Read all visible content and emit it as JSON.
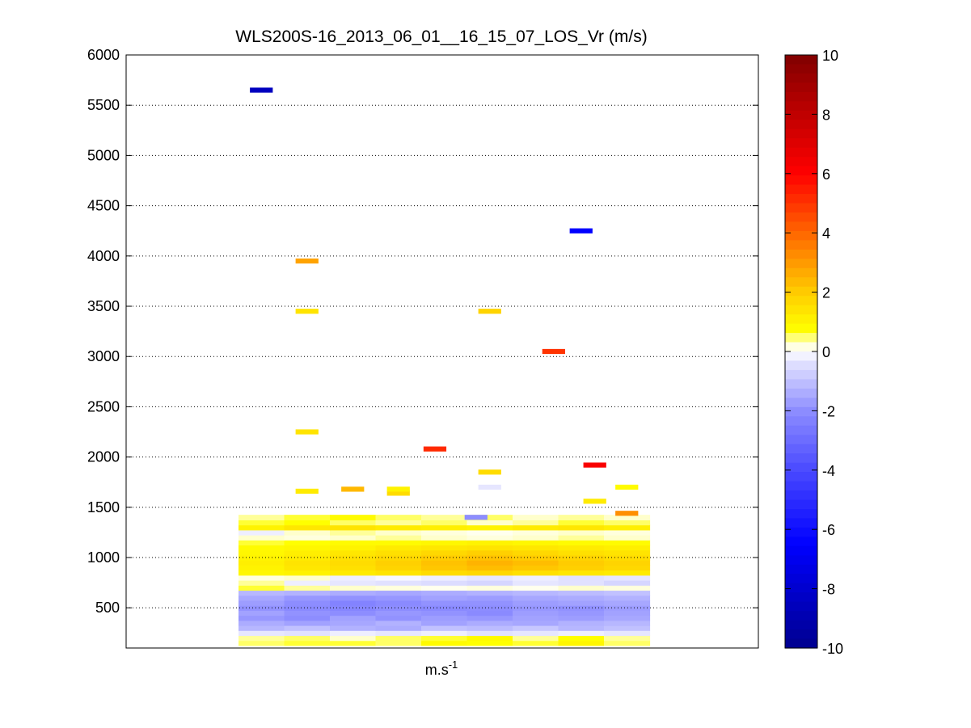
{
  "chart_data": {
    "type": "heatmap",
    "title": "WLS200S-16_2013_06_01__16_15_07_LOS_Vr (m/s)",
    "xlabel": {
      "base": "m.s",
      "superscript": "-1"
    },
    "ylabel": "",
    "ylim": [
      100,
      6000
    ],
    "yticks": [
      "500",
      "1000",
      "1500",
      "2000",
      "2500",
      "3000",
      "3500",
      "4000",
      "4500",
      "5000",
      "5500",
      "6000"
    ],
    "grid": "horizontal dotted",
    "colorbar": {
      "range": [
        -10,
        10
      ],
      "ticks": [
        "-10",
        "-8",
        "-6",
        "-4",
        "-2",
        "0",
        "2",
        "4",
        "6",
        "8",
        "10"
      ],
      "placement": "right",
      "stops": [
        {
          "v": -10,
          "color": "#00008f"
        },
        {
          "v": -6.5,
          "color": "#0000ff"
        },
        {
          "v": -4,
          "color": "#4a4aff"
        },
        {
          "v": -2,
          "color": "#8d8dff"
        },
        {
          "v": -0.3,
          "color": "#e6e6ff"
        },
        {
          "v": 0,
          "color": "#ffffff"
        },
        {
          "v": 0.3,
          "color": "#ffffcc"
        },
        {
          "v": 0.7,
          "color": "#ffff00"
        },
        {
          "v": 2,
          "color": "#ffcc00"
        },
        {
          "v": 4,
          "color": "#ff6600"
        },
        {
          "v": 6,
          "color": "#ff0000"
        },
        {
          "v": 10,
          "color": "#800000"
        }
      ]
    },
    "x_columns": 9,
    "cells": [
      {
        "c": 0.5,
        "h": 5650,
        "v": -8.5
      },
      {
        "c": 1.5,
        "h": 3950,
        "v": 2.8
      },
      {
        "c": 1.5,
        "h": 3450,
        "v": 1.4
      },
      {
        "c": 1.5,
        "h": 2250,
        "v": 1.4
      },
      {
        "c": 5.5,
        "h": 3450,
        "v": 1.8
      },
      {
        "c": 6.9,
        "h": 3050,
        "v": 5.0
      },
      {
        "c": 7.5,
        "h": 4250,
        "v": -6.5
      },
      {
        "c": 4.3,
        "h": 2080,
        "v": 5.2
      },
      {
        "c": 5.5,
        "h": 1850,
        "v": 1.6
      },
      {
        "c": 5.5,
        "h": 1700,
        "v": -0.3
      },
      {
        "c": 7.8,
        "h": 1920,
        "v": 6.2
      },
      {
        "c": 1.5,
        "h": 1660,
        "v": 1.2
      },
      {
        "c": 2.5,
        "h": 1680,
        "v": 2.4
      },
      {
        "c": 3.5,
        "h": 1640,
        "v": 1.6
      },
      {
        "c": 3.5,
        "h": 1680,
        "v": 1.0
      },
      {
        "c": 8.5,
        "h": 1700,
        "v": 0.8
      },
      {
        "c": 7.8,
        "h": 1560,
        "v": 1.2
      },
      {
        "c": 8.5,
        "h": 1440,
        "v": 3.2
      },
      {
        "c": 5.2,
        "h": 1400,
        "v": -2.0
      }
    ],
    "profiles": [
      {
        "h": 150,
        "v": [
          0.5,
          0.6,
          0.6,
          0.5,
          0.8,
          0.7,
          0.6,
          0.9,
          0.5
        ]
      },
      {
        "h": 200,
        "v": [
          0.4,
          0.5,
          0.3,
          0.5,
          0.6,
          0.8,
          0.4,
          0.7,
          0.4
        ]
      },
      {
        "h": 250,
        "v": [
          -0.3,
          -0.4,
          -0.2,
          -0.3,
          -0.2,
          -0.4,
          -0.3,
          -0.2,
          -0.3
        ]
      },
      {
        "h": 300,
        "v": [
          -1.2,
          -1.0,
          -1.3,
          -1.4,
          -1.0,
          -1.1,
          -0.9,
          -1.2,
          -1.0
        ]
      },
      {
        "h": 350,
        "v": [
          -1.4,
          -1.6,
          -1.5,
          -1.3,
          -1.6,
          -1.4,
          -1.5,
          -1.3,
          -1.2
        ]
      },
      {
        "h": 400,
        "v": [
          -1.8,
          -2.0,
          -1.6,
          -1.9,
          -1.7,
          -1.8,
          -1.6,
          -1.7,
          -1.5
        ]
      },
      {
        "h": 450,
        "v": [
          -1.6,
          -1.9,
          -2.0,
          -1.8,
          -1.9,
          -2.1,
          -1.7,
          -1.8,
          -1.6
        ]
      },
      {
        "h": 500,
        "v": [
          -1.9,
          -2.1,
          -2.2,
          -2.0,
          -2.1,
          -2.0,
          -1.8,
          -1.9,
          -1.7
        ]
      },
      {
        "h": 550,
        "v": [
          -1.7,
          -2.0,
          -2.3,
          -2.1,
          -1.9,
          -1.9,
          -1.7,
          -1.6,
          -1.5
        ]
      },
      {
        "h": 600,
        "v": [
          -1.5,
          -1.8,
          -1.9,
          -1.8,
          -1.6,
          -1.7,
          -1.5,
          -1.4,
          -1.3
        ]
      },
      {
        "h": 650,
        "v": [
          -1.2,
          -1.3,
          -1.4,
          -1.5,
          -1.4,
          -1.3,
          -1.2,
          -1.1,
          -1.0
        ]
      },
      {
        "h": 700,
        "v": [
          0.6,
          0.4,
          0.3,
          0.2,
          0.1,
          0.2,
          0.1,
          0.3,
          0.2
        ]
      },
      {
        "h": 750,
        "v": [
          0.4,
          -0.2,
          -0.3,
          -0.4,
          -0.5,
          -0.6,
          -0.3,
          -0.4,
          -0.6
        ]
      },
      {
        "h": 800,
        "v": [
          0.2,
          0.3,
          -0.2,
          -0.1,
          -0.2,
          -0.3,
          -0.2,
          -0.4,
          -0.3
        ]
      },
      {
        "h": 850,
        "v": [
          0.9,
          1.0,
          1.2,
          1.4,
          1.6,
          1.7,
          1.5,
          1.3,
          1.2
        ]
      },
      {
        "h": 900,
        "v": [
          1.0,
          1.3,
          1.5,
          1.8,
          2.1,
          2.3,
          2.1,
          1.9,
          1.7
        ]
      },
      {
        "h": 950,
        "v": [
          1.1,
          1.4,
          1.6,
          1.9,
          2.2,
          2.5,
          2.3,
          2.0,
          1.8
        ]
      },
      {
        "h": 1000,
        "v": [
          1.0,
          1.2,
          1.5,
          1.7,
          2.0,
          2.2,
          2.0,
          1.8,
          1.6
        ]
      },
      {
        "h": 1050,
        "v": [
          0.9,
          1.1,
          1.3,
          1.5,
          1.7,
          1.9,
          1.7,
          1.5,
          1.4
        ]
      },
      {
        "h": 1100,
        "v": [
          0.8,
          0.9,
          1.0,
          1.2,
          1.3,
          1.4,
          1.3,
          1.2,
          1.1
        ]
      },
      {
        "h": 1150,
        "v": [
          0.6,
          0.7,
          0.8,
          0.8,
          0.9,
          1.0,
          0.9,
          0.8,
          0.8
        ]
      },
      {
        "h": 1200,
        "v": [
          0.3,
          0.2,
          0.3,
          0.4,
          0.3,
          0.2,
          0.3,
          0.4,
          0.3
        ]
      },
      {
        "h": 1250,
        "v": [
          -0.2,
          0.3,
          0.4,
          0.3,
          0.2,
          0.1,
          0.2,
          0.3,
          0.2
        ]
      },
      {
        "h": 1300,
        "v": [
          1.0,
          1.3,
          1.4,
          1.2,
          1.1,
          1.0,
          1.2,
          1.3,
          1.1
        ]
      },
      {
        "h": 1350,
        "v": [
          0.6,
          0.7,
          0.5,
          0.4,
          0.5,
          0.3,
          0.4,
          0.6,
          0.5
        ]
      },
      {
        "h": 1400,
        "v": [
          0.4,
          0.6,
          0.8,
          0.5,
          0.4,
          0.5,
          0.3,
          0.4,
          0.3
        ]
      }
    ]
  }
}
